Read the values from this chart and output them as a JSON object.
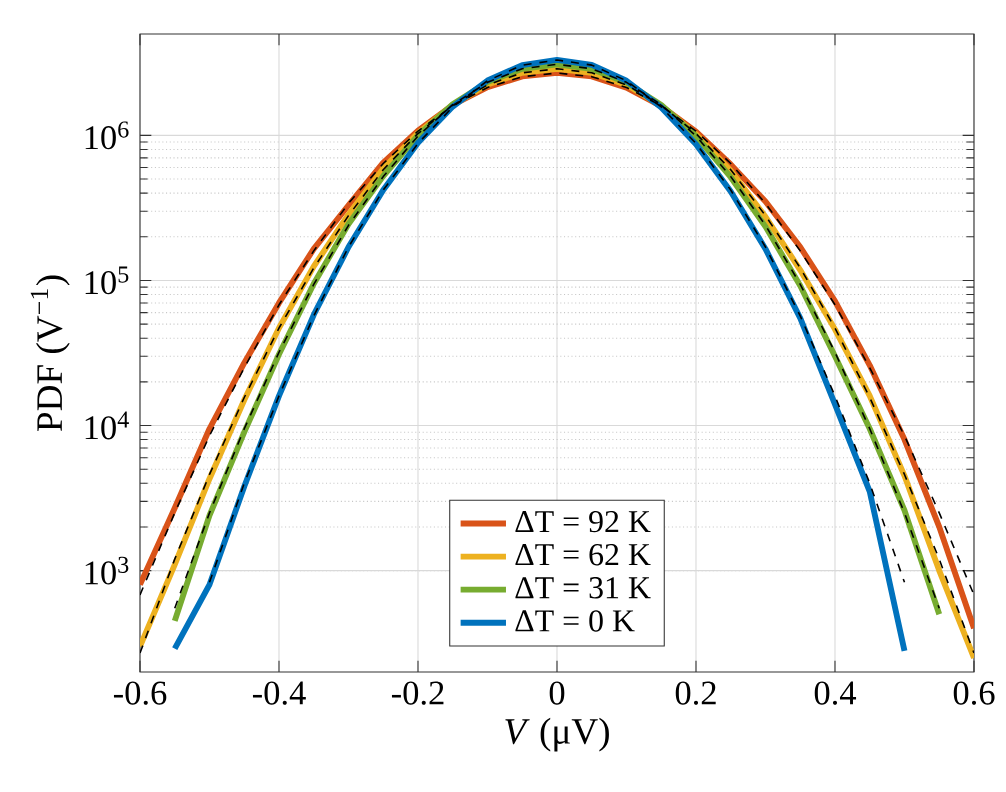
{
  "chart_data": {
    "type": "line",
    "xlabel": "*V* (μV)",
    "ylabel": "PDF (V$^{−1}$)",
    "log": "y",
    "grid": true,
    "legend": "bottom",
    "marker": "none",
    "x": [
      -0.6,
      -0.55,
      -0.5,
      -0.45,
      -0.4,
      -0.35,
      -0.3,
      -0.25,
      -0.2,
      -0.15,
      -0.1,
      -0.05,
      0,
      0.05,
      0.1,
      0.15,
      0.2,
      0.25,
      0.3,
      0.35,
      0.4,
      0.45,
      0.5,
      0.55,
      0.6
    ],
    "xlim": [
      -0.6,
      0.6
    ],
    "xticks": [
      -0.6,
      -0.4,
      -0.2,
      0,
      0.2,
      0.4,
      0.6
    ],
    "ylim": [
      200,
      5000000
    ],
    "yticks": [
      {
        "value": 1000,
        "label": "10$^{3}$"
      },
      {
        "value": 10000,
        "label": "10$^{4}$"
      },
      {
        "value": 100000,
        "label": "10$^{5}$"
      },
      {
        "value": 1000000,
        "label": "10$^{6}$"
      }
    ],
    "series": [
      {
        "name": "ΔT = 92 K",
        "color": "#d95319",
        "line_style": "solid",
        "values": [
          800,
          2700,
          9500,
          27000,
          70000,
          165000,
          330000,
          650000,
          1080000,
          1620000,
          2150000,
          2550000,
          2700000,
          2550000,
          2130000,
          1590000,
          1060000,
          630000,
          350000,
          170000,
          72000,
          26000,
          8000,
          2000,
          400
        ]
      },
      {
        "name": "ΔT = 62 K",
        "color": "#edb120",
        "line_style": "solid",
        "values": [
          300,
          1100,
          4300,
          15000,
          47000,
          125000,
          285000,
          590000,
          1040000,
          1620000,
          2240000,
          2700000,
          2880000,
          2700000,
          2230000,
          1600000,
          1020000,
          570000,
          275000,
          118000,
          46000,
          16000,
          4500,
          1000,
          250
        ]
      },
      {
        "name": "ΔT = 31 K",
        "color": "#77ac30",
        "line_style": "solid",
        "values": [
          null,
          450,
          2400,
          9000,
          31000,
          95000,
          245000,
          525000,
          1000000,
          1640000,
          2330000,
          2880000,
          3090000,
          2870000,
          2310000,
          1620000,
          990000,
          515000,
          235000,
          92000,
          30000,
          9500,
          2600,
          500,
          null
        ]
      },
      {
        "name": "ΔT = 0 K",
        "color": "#0072bd",
        "line_style": "solid",
        "values": [
          null,
          290,
          800,
          3800,
          16000,
          58000,
          170000,
          420000,
          890000,
          1580000,
          2390000,
          3050000,
          3310000,
          3060000,
          2380000,
          1560000,
          870000,
          410000,
          165000,
          55000,
          14000,
          3500,
          280,
          null,
          null
        ]
      },
      {
        "color": "#000000",
        "line_style": "dashed",
        "values": [
          680,
          2500,
          8500,
          25000,
          68000,
          160000,
          340000,
          640000,
          1070000,
          1600000,
          2140000,
          2540000,
          2690000,
          2540000,
          2140000,
          1600000,
          1070000,
          640000,
          340000,
          160000,
          68000,
          25000,
          8500,
          2500,
          680
        ]
      },
      {
        "color": "#000000",
        "line_style": "dashed",
        "values": [
          270,
          1200,
          4600,
          15600,
          47000,
          122000,
          280000,
          580000,
          1030000,
          1610000,
          2230000,
          2700000,
          2880000,
          2700000,
          2230000,
          1610000,
          1030000,
          580000,
          280000,
          122000,
          47000,
          15600,
          4600,
          1200,
          270
        ]
      },
      {
        "color": "#000000",
        "line_style": "dashed",
        "values": [
          null,
          550,
          2500,
          9500,
          32000,
          94000,
          240000,
          520000,
          990000,
          1630000,
          2320000,
          2880000,
          3090000,
          2880000,
          2320000,
          1630000,
          990000,
          520000,
          240000,
          94000,
          32000,
          9500,
          2500,
          550,
          null
        ]
      },
      {
        "color": "#000000",
        "line_style": "dashed",
        "values": [
          null,
          null,
          830,
          4000,
          16000,
          57000,
          170000,
          420000,
          880000,
          1570000,
          2380000,
          3050000,
          3310000,
          3050000,
          2380000,
          1570000,
          880000,
          420000,
          170000,
          57000,
          16000,
          4000,
          830,
          null,
          null
        ]
      }
    ]
  }
}
